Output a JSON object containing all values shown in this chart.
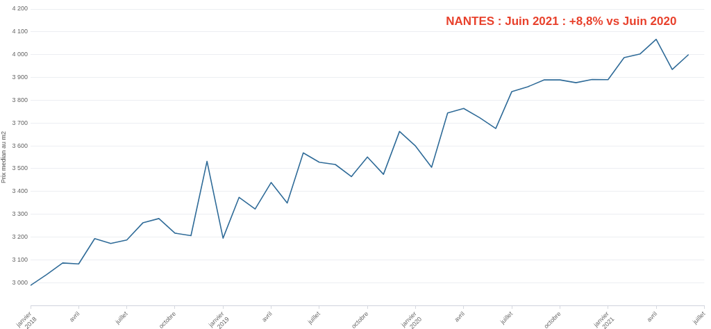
{
  "chart_data": {
    "type": "line",
    "title": "NANTES : Juin 2021 : +8,8% vs Juin 2020",
    "ylabel": "Prix median au m2",
    "x": [
      "2018-01",
      "2018-02",
      "2018-03",
      "2018-04",
      "2018-05",
      "2018-06",
      "2018-07",
      "2018-08",
      "2018-09",
      "2018-10",
      "2018-11",
      "2018-12",
      "2019-01",
      "2019-02",
      "2019-03",
      "2019-04",
      "2019-05",
      "2019-06",
      "2019-07",
      "2019-08",
      "2019-09",
      "2019-10",
      "2019-11",
      "2019-12",
      "2020-01",
      "2020-02",
      "2020-03",
      "2020-04",
      "2020-05",
      "2020-06",
      "2020-07",
      "2020-08",
      "2020-09",
      "2020-10",
      "2020-11",
      "2020-12",
      "2021-01",
      "2021-02",
      "2021-03",
      "2021-04",
      "2021-05",
      "2021-06"
    ],
    "values": [
      2988,
      3035,
      3086,
      3082,
      3193,
      3172,
      3187,
      3262,
      3281,
      3217,
      3206,
      3532,
      3195,
      3374,
      3323,
      3439,
      3349,
      3569,
      3528,
      3518,
      3465,
      3551,
      3475,
      3663,
      3599,
      3506,
      3744,
      3764,
      3723,
      3676,
      3838,
      3859,
      3889,
      3889,
      3877,
      3891,
      3890,
      3987,
      4003,
      4067,
      3935,
      3999
    ],
    "color": "#2f6b98",
    "xlim": [
      "2018-01",
      "2021-07"
    ],
    "xticks": [
      {
        "value": "2018-01",
        "label": "janvier 2018"
      },
      {
        "value": "2018-04",
        "label": "avril"
      },
      {
        "value": "2018-07",
        "label": "juillet"
      },
      {
        "value": "2018-10",
        "label": "octobre"
      },
      {
        "value": "2019-01",
        "label": "janvier 2019"
      },
      {
        "value": "2019-04",
        "label": "avril"
      },
      {
        "value": "2019-07",
        "label": "juillet"
      },
      {
        "value": "2019-10",
        "label": "octobre"
      },
      {
        "value": "2020-01",
        "label": "janvier 2020"
      },
      {
        "value": "2020-04",
        "label": "avril"
      },
      {
        "value": "2020-07",
        "label": "juillet"
      },
      {
        "value": "2020-10",
        "label": "octobre"
      },
      {
        "value": "2021-01",
        "label": "janvier 2021"
      },
      {
        "value": "2021-04",
        "label": "avril"
      },
      {
        "value": "2021-07",
        "label": "juillet"
      }
    ],
    "ylim": [
      2900,
      4200
    ],
    "yticks": [
      {
        "value": 3000,
        "label": "3 000"
      },
      {
        "value": 3100,
        "label": "3 100"
      },
      {
        "value": 3200,
        "label": "3 200"
      },
      {
        "value": 3300,
        "label": "3 300"
      },
      {
        "value": 3400,
        "label": "3 400"
      },
      {
        "value": 3500,
        "label": "3 500"
      },
      {
        "value": 3600,
        "label": "3 600"
      },
      {
        "value": 3700,
        "label": "3 700"
      },
      {
        "value": 3800,
        "label": "3 800"
      },
      {
        "value": 3900,
        "label": "3 900"
      },
      {
        "value": 4000,
        "label": "4 000"
      },
      {
        "value": 4100,
        "label": "4 100"
      },
      {
        "value": 4200,
        "label": "4 200"
      }
    ],
    "grid": "y"
  }
}
